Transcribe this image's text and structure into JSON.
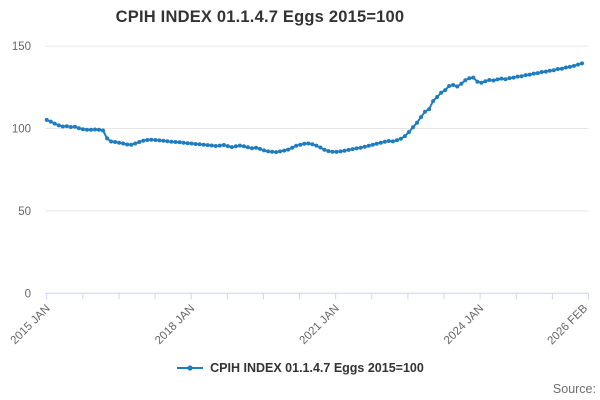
{
  "title": "CPIH INDEX 01.1.4.7 Eggs 2015=100",
  "legend": {
    "label": "CPIH INDEX 01.1.4.7 Eggs 2015=100"
  },
  "source": {
    "label": "Source:"
  },
  "colors": {
    "line": "#1f7dbf",
    "grid": "#e6e6e6",
    "axis": "#ccd6eb",
    "tick_label": "#666666",
    "title_text": "#333333",
    "legend_text": "#333333",
    "source_text": "#6e6e6e"
  },
  "chart_data": {
    "type": "line",
    "title": "CPIH INDEX 01.1.4.7 Eggs 2015=100",
    "x_unit": "month",
    "x_start_label": "2015 JAN",
    "x_end_label": "2026 FEB",
    "x_tick_labels": [
      "2015 JAN",
      "2018 JAN",
      "2021 JAN",
      "2024 JAN",
      "2026 FEB"
    ],
    "x_label_tick_indices": [
      0,
      4,
      8,
      12,
      15
    ],
    "x_tick_count": 16,
    "y_ticks": [
      0,
      50,
      100,
      150
    ],
    "y_tick_labels": [
      "0",
      "50",
      "100",
      "150"
    ],
    "ylim": [
      0,
      155
    ],
    "grid": "horizontal-only",
    "legend_position": "bottom-center",
    "marker": "circle",
    "series": [
      {
        "name": "CPIH INDEX 01.1.4.7 Eggs 2015=100",
        "color": "#1f7dbf",
        "frequency": "monthly",
        "values": [
          105.2,
          104.2,
          103.0,
          101.9,
          101.2,
          101.4,
          100.9,
          101.1,
          100.2,
          99.6,
          99.3,
          99.2,
          99.4,
          99.2,
          98.8,
          94.0,
          92.1,
          91.8,
          91.4,
          90.9,
          90.3,
          90.1,
          90.9,
          91.8,
          92.6,
          93.0,
          93.2,
          93.0,
          92.8,
          92.6,
          92.3,
          92.0,
          91.8,
          91.6,
          91.3,
          91.1,
          90.9,
          90.6,
          90.4,
          90.1,
          89.9,
          89.7,
          89.4,
          89.6,
          90.0,
          89.3,
          88.7,
          89.2,
          89.6,
          89.2,
          88.6,
          88.0,
          88.3,
          87.6,
          86.7,
          86.1,
          85.9,
          85.7,
          86.1,
          86.6,
          87.2,
          88.3,
          89.5,
          90.2,
          90.7,
          90.9,
          90.5,
          89.6,
          88.5,
          87.1,
          86.3,
          85.9,
          85.8,
          86.1,
          86.5,
          87.0,
          87.5,
          87.9,
          88.3,
          88.9,
          89.5,
          90.2,
          90.8,
          91.4,
          91.9,
          92.4,
          92.2,
          92.9,
          93.8,
          95.4,
          97.8,
          100.8,
          103.5,
          106.9,
          110.2,
          111.8,
          116.6,
          119.1,
          121.7,
          123.3,
          125.8,
          126.4,
          125.5,
          127.2,
          129.3,
          130.5,
          130.9,
          128.4,
          127.8,
          128.7,
          129.4,
          129.1,
          129.8,
          130.3,
          129.9,
          130.6,
          130.9,
          131.5,
          131.7,
          132.4,
          132.7,
          133.3,
          133.6,
          134.3,
          134.5,
          135.1,
          135.4,
          136.1,
          136.3,
          137.0,
          137.4,
          138.0,
          138.8,
          139.5
        ]
      }
    ]
  }
}
